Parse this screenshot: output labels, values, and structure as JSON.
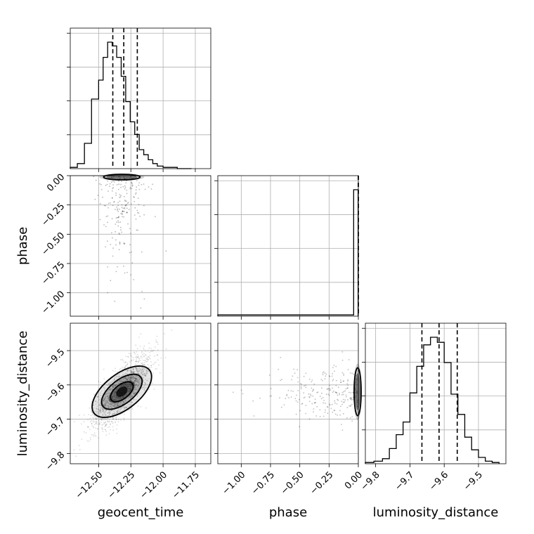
{
  "chart_data": {
    "type": "corner",
    "parameters": [
      "geocent_time",
      "phase",
      "luminosity_distance"
    ],
    "axis_labels": {
      "geocent_time": "geocent_time",
      "phase": "phase",
      "luminosity_distance": "luminosity_distance"
    },
    "ranges": {
      "geocent_time": [
        -12.72,
        -11.63
      ],
      "phase": [
        -1.2,
        0.0
      ],
      "luminosity_distance": [
        -9.83,
        -9.42
      ]
    },
    "ticks": {
      "geocent_time": {
        "values": [
          -12.5,
          -12.25,
          -12.0,
          -11.75
        ],
        "labels": [
          "−12.50",
          "−12.25",
          "−12.00",
          "−11.75"
        ]
      },
      "phase": {
        "values": [
          -1.0,
          -0.75,
          -0.5,
          -0.25,
          0.0
        ],
        "labels": [
          "−1.00",
          "−0.75",
          "−0.50",
          "−0.25",
          "0.00"
        ]
      },
      "luminosity_distance": {
        "values": [
          -9.8,
          -9.7,
          -9.6,
          -9.5
        ],
        "labels": [
          "−9.8",
          "−9.7",
          "−9.6",
          "−9.5"
        ]
      }
    },
    "histograms": {
      "geocent_time": {
        "bin_edges": [
          -12.72,
          -12.665,
          -12.61,
          -12.555,
          -12.5,
          -12.465,
          -12.43,
          -12.395,
          -12.36,
          -12.325,
          -12.29,
          -12.255,
          -12.22,
          -12.185,
          -12.15,
          -12.115,
          -12.08,
          -12.045,
          -12.0,
          -11.945,
          -11.89,
          -11.835,
          -11.78
        ],
        "counts": [
          1,
          4,
          20,
          55,
          70,
          88,
          100,
          97,
          88,
          73,
          53,
          37,
          27,
          15,
          11,
          7,
          4,
          2,
          1,
          1,
          0,
          0
        ],
        "quantiles": [
          -12.39,
          -12.305,
          -12.2
        ]
      },
      "phase": {
        "bin_edges": [
          -1.2,
          -0.04,
          -0.002
        ],
        "counts": [
          1,
          100
        ],
        "quantiles": [
          -0.001,
          0.0
        ]
      },
      "luminosity_distance": {
        "bin_edges": [
          -9.83,
          -9.805,
          -9.78,
          -9.76,
          -9.74,
          -9.72,
          -9.7,
          -9.68,
          -9.66,
          -9.64,
          -9.62,
          -9.6,
          -9.58,
          -9.56,
          -9.54,
          -9.52,
          -9.5,
          -9.48,
          -9.46,
          -9.44
        ],
        "counts": [
          1,
          2,
          4,
          12,
          23,
          33,
          56,
          77,
          94,
          100,
          96,
          80,
          55,
          39,
          21,
          11,
          5,
          2,
          1
        ],
        "quantiles": [
          -9.665,
          -9.615,
          -9.562
        ]
      }
    },
    "correlations": {
      "geocent_time__luminosity_distance": 0.75,
      "peak": {
        "geocent_time": -12.32,
        "luminosity_distance": -9.62,
        "phase": 0.0
      }
    },
    "grid": true,
    "colors": {
      "points": "#000000",
      "lines": "#000000",
      "grid": "#b0b0b0"
    }
  }
}
